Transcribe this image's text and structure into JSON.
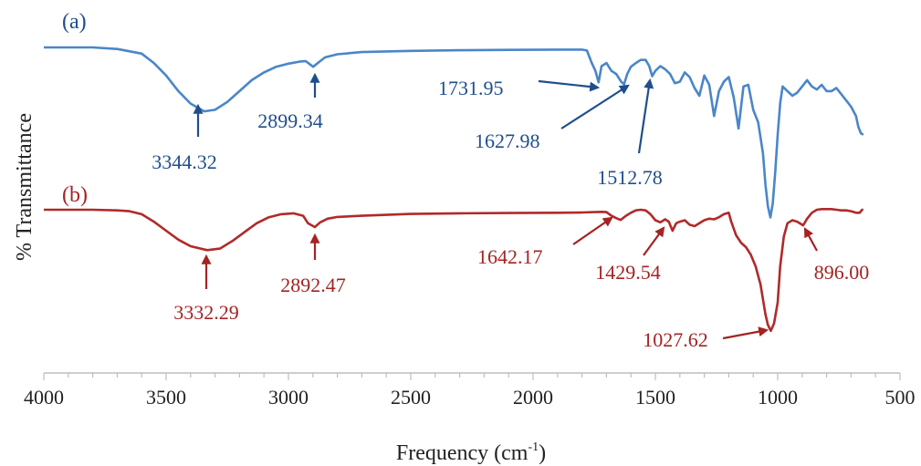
{
  "chart_data": {
    "type": "line",
    "title": "",
    "xlabel": "Frequency (cm",
    "xlabel_sup": "-1",
    "xlabel_close": ")",
    "ylabel": "% Transmittance",
    "xlim": [
      4000,
      500
    ],
    "x_reversed": true,
    "x_ticks": [
      4000,
      3500,
      3000,
      2500,
      2000,
      1500,
      1000,
      500
    ],
    "x_tick_labels": [
      "4000",
      "3500",
      "3000",
      "2500",
      "2000",
      "1500",
      "1000",
      "500"
    ],
    "ylim": [
      0,
      100
    ],
    "y_ticks_visible": false,
    "grid": false,
    "series": [
      {
        "name": "(a)",
        "color": "#4a86c8",
        "label_color": "#1f4e8c",
        "x": [
          4000,
          3900,
          3800,
          3700,
          3600,
          3550,
          3500,
          3450,
          3400,
          3344,
          3300,
          3250,
          3200,
          3150,
          3100,
          3050,
          3000,
          2950,
          2930,
          2899,
          2870,
          2850,
          2800,
          2700,
          2500,
          2300,
          2100,
          1900,
          1800,
          1780,
          1760,
          1745,
          1732,
          1720,
          1700,
          1680,
          1660,
          1640,
          1628,
          1615,
          1600,
          1580,
          1560,
          1540,
          1525,
          1513,
          1500,
          1480,
          1460,
          1440,
          1420,
          1400,
          1380,
          1360,
          1340,
          1320,
          1300,
          1280,
          1260,
          1240,
          1220,
          1200,
          1180,
          1160,
          1140,
          1120,
          1100,
          1080,
          1060,
          1050,
          1040,
          1030,
          1020,
          1010,
          1000,
          990,
          980,
          960,
          940,
          920,
          900,
          880,
          860,
          840,
          820,
          800,
          780,
          760,
          740,
          720,
          700,
          690,
          680,
          670,
          660,
          650
        ],
        "y": [
          96.0,
          96.0,
          96.0,
          95.5,
          94.0,
          91.0,
          87.0,
          82.0,
          78.0,
          75.5,
          76.0,
          78.5,
          82.0,
          85.5,
          88.0,
          89.8,
          90.8,
          91.5,
          91.6,
          89.8,
          91.6,
          92.8,
          93.8,
          94.5,
          94.9,
          95.1,
          95.2,
          95.3,
          95.3,
          95.0,
          91.0,
          88.5,
          84.8,
          90.0,
          91.0,
          88.5,
          87.5,
          85.0,
          84.2,
          87.5,
          89.8,
          91.0,
          92.0,
          92.0,
          90.0,
          86.8,
          88.5,
          90.0,
          89.0,
          87.5,
          84.5,
          85.0,
          88.0,
          86.5,
          83.0,
          80.5,
          87.0,
          84.0,
          74.0,
          82.0,
          85.0,
          86.5,
          80.0,
          70.0,
          83.5,
          84.0,
          76.0,
          72.0,
          62.0,
          52.0,
          45.0,
          41.5,
          46.0,
          56.0,
          68.0,
          78.0,
          83.5,
          82.0,
          80.5,
          81.5,
          83.5,
          85.5,
          83.5,
          82.5,
          84.0,
          82.0,
          82.0,
          83.0,
          81.0,
          79.0,
          77.0,
          75.5,
          74.0,
          70.5,
          68.5,
          68.0
        ]
      },
      {
        "name": "(b)",
        "color": "#b02a2a",
        "label_color": "#a52323",
        "x": [
          4000,
          3900,
          3800,
          3700,
          3650,
          3600,
          3550,
          3500,
          3450,
          3400,
          3332,
          3280,
          3230,
          3180,
          3130,
          3080,
          3030,
          2980,
          2940,
          2920,
          2892,
          2870,
          2840,
          2800,
          2700,
          2500,
          2300,
          2100,
          1900,
          1800,
          1720,
          1700,
          1680,
          1660,
          1642,
          1620,
          1600,
          1580,
          1560,
          1540,
          1520,
          1500,
          1480,
          1460,
          1445,
          1430,
          1415,
          1400,
          1380,
          1360,
          1340,
          1320,
          1300,
          1280,
          1260,
          1240,
          1220,
          1200,
          1190,
          1170,
          1150,
          1130,
          1110,
          1090,
          1070,
          1060,
          1050,
          1040,
          1028,
          1015,
          1000,
          990,
          975,
          960,
          940,
          920,
          896,
          880,
          860,
          840,
          820,
          800,
          780,
          760,
          740,
          720,
          700,
          680,
          665,
          655,
          650
        ],
        "y": [
          57.0,
          57.0,
          57.0,
          56.8,
          56.5,
          55.5,
          53.0,
          50.0,
          47.0,
          44.8,
          43.5,
          44.0,
          46.5,
          49.5,
          52.5,
          54.5,
          55.5,
          55.8,
          55.0,
          52.5,
          51.2,
          52.8,
          54.0,
          54.6,
          55.0,
          55.6,
          55.8,
          55.9,
          56.0,
          56.1,
          56.3,
          56.2,
          55.0,
          54.2,
          53.6,
          55.0,
          56.0,
          56.8,
          57.0,
          56.8,
          55.5,
          53.5,
          52.8,
          53.8,
          53.0,
          50.0,
          52.5,
          53.0,
          53.5,
          52.0,
          51.5,
          52.5,
          53.5,
          54.0,
          53.8,
          54.5,
          55.5,
          56.0,
          53.0,
          48.5,
          46.0,
          44.5,
          42.0,
          38.0,
          32.0,
          27.0,
          22.0,
          18.5,
          16.5,
          19.0,
          26.0,
          38.0,
          48.0,
          52.5,
          53.5,
          53.0,
          51.8,
          54.0,
          56.0,
          57.0,
          57.2,
          57.2,
          57.2,
          57.0,
          56.8,
          56.8,
          56.5,
          56.0,
          56.0,
          57.0,
          57.0
        ]
      }
    ],
    "panel_labels": [
      "(a)",
      "(b)"
    ],
    "annotations": [
      {
        "series": 0,
        "text": "3344.32"
      },
      {
        "series": 0,
        "text": "2899.34"
      },
      {
        "series": 0,
        "text": "1731.95"
      },
      {
        "series": 0,
        "text": "1627.98"
      },
      {
        "series": 0,
        "text": "1512.78"
      },
      {
        "series": 1,
        "text": "3332.29"
      },
      {
        "series": 1,
        "text": "2892.47"
      },
      {
        "series": 1,
        "text": "1642.17"
      },
      {
        "series": 1,
        "text": "1429.54"
      },
      {
        "series": 1,
        "text": "1027.62"
      },
      {
        "series": 1,
        "text": "896.00"
      }
    ]
  }
}
